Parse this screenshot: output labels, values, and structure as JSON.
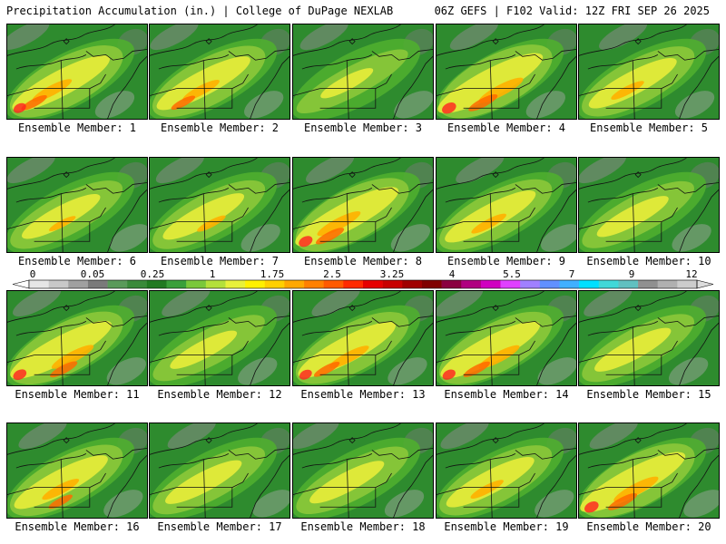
{
  "header": {
    "left": "Precipitation Accumulation (in.) | College of DuPage NEXLAB",
    "right": "06Z GEFS | F102 Valid: 12Z FRI SEP 26 2025"
  },
  "members": [
    {
      "label": "Ensemble Member: 1",
      "intensity": 0.62
    },
    {
      "label": "Ensemble Member: 2",
      "intensity": 0.58
    },
    {
      "label": "Ensemble Member: 3",
      "intensity": 0.15
    },
    {
      "label": "Ensemble Member: 4",
      "intensity": 0.7
    },
    {
      "label": "Ensemble Member: 5",
      "intensity": 0.52
    },
    {
      "label": "Ensemble Member: 6",
      "intensity": 0.42
    },
    {
      "label": "Ensemble Member: 7",
      "intensity": 0.45
    },
    {
      "label": "Ensemble Member: 8",
      "intensity": 0.68
    },
    {
      "label": "Ensemble Member: 9",
      "intensity": 0.55
    },
    {
      "label": "Ensemble Member: 10",
      "intensity": 0.35
    },
    {
      "label": "Ensemble Member: 11",
      "intensity": 0.66
    },
    {
      "label": "Ensemble Member: 12",
      "intensity": 0.3
    },
    {
      "label": "Ensemble Member: 13",
      "intensity": 0.62
    },
    {
      "label": "Ensemble Member: 14",
      "intensity": 0.64
    },
    {
      "label": "Ensemble Member: 15",
      "intensity": 0.4
    },
    {
      "label": "Ensemble Member: 16",
      "intensity": 0.58
    },
    {
      "label": "Ensemble Member: 17",
      "intensity": 0.4
    },
    {
      "label": "Ensemble Member: 18",
      "intensity": 0.38
    },
    {
      "label": "Ensemble Member: 19",
      "intensity": 0.52
    },
    {
      "label": "Ensemble Member: 20",
      "intensity": 0.7
    }
  ],
  "colorbar": {
    "labels": [
      "0",
      "0.05",
      "0.25",
      "1",
      "1.75",
      "2.5",
      "3.25",
      "4",
      "5.5",
      "7",
      "9",
      "12"
    ],
    "colors": [
      "#e6e6e6",
      "#c8c8c8",
      "#a0a0a0",
      "#7a7a7a",
      "#5a9a5a",
      "#3a8a3a",
      "#217a21",
      "#3aa03a",
      "#7ac83a",
      "#b4e03a",
      "#e8f03a",
      "#fff000",
      "#ffd000",
      "#ffa800",
      "#ff8000",
      "#ff5a00",
      "#ff2a00",
      "#e60000",
      "#c80000",
      "#a00000",
      "#800000",
      "#8a0040",
      "#b00080",
      "#d000c0",
      "#e040ff",
      "#a080ff",
      "#6090ff",
      "#40b0ff",
      "#00e0ff",
      "#40d8d8",
      "#60c0c0",
      "#909090",
      "#b0b0b0",
      "#cccccc"
    ]
  }
}
